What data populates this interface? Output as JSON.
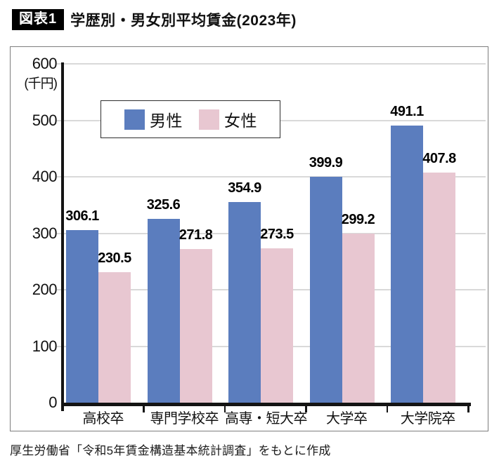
{
  "header": {
    "badge": "図表1",
    "title": "学歴別・男女別平均賃金(2023年)"
  },
  "chart_data": {
    "type": "bar",
    "title": "学歴別・男女別平均賃金(2023年)",
    "categories": [
      "高校卒",
      "専門学校卒",
      "高専・短大卒",
      "大学卒",
      "大学院卒"
    ],
    "series": [
      {
        "key": "male",
        "name": "男性",
        "color": "#5b7dbe",
        "values": [
          306.1,
          325.6,
          354.9,
          399.9,
          491.1
        ]
      },
      {
        "key": "female",
        "name": "女性",
        "color": "#e8c7d1",
        "values": [
          230.5,
          271.8,
          273.5,
          299.2,
          407.8
        ]
      }
    ],
    "ylabel": "(千円)",
    "yticks": [
      0,
      100,
      200,
      300,
      400,
      500,
      600
    ],
    "ylim": [
      0,
      600
    ],
    "grid": true,
    "legend_position": "inside-top-left",
    "colors": {
      "grid": "#d9d9d9",
      "axis": "#141414"
    }
  },
  "footer": {
    "source": "厚生労働省「令和5年賃金構造基本統計調査」をもとに作成"
  }
}
